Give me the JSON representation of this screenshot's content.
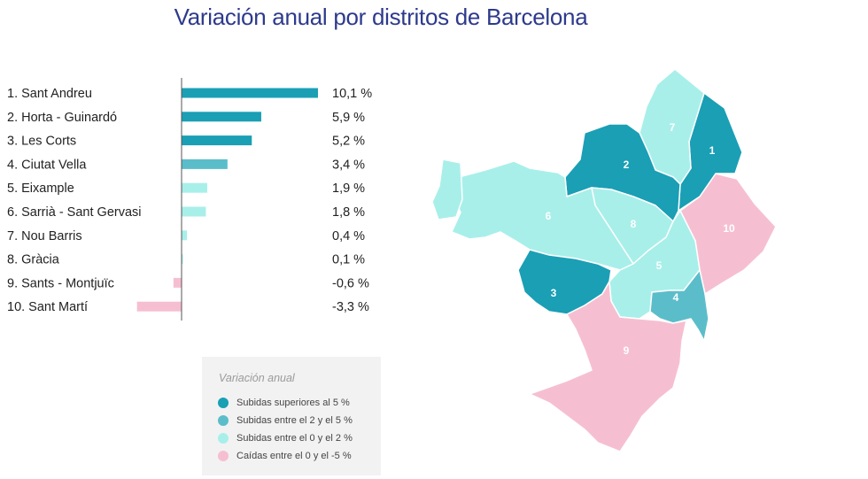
{
  "title": "Variación anual por distritos de Barcelona",
  "colors": {
    "high": "#1a9fb5",
    "mid": "#5bbdca",
    "low": "#a8efea",
    "neg": "#f6bfd1"
  },
  "chart_data": {
    "type": "bar",
    "orientation": "horizontal",
    "title": "Variación anual por distritos de Barcelona",
    "unit": "%",
    "xlim": [
      -4,
      11
    ],
    "categories": [
      "1. Sant Andreu",
      "2. Horta - Guinardó",
      "3. Les Corts",
      "4. Ciutat Vella",
      "5. Eixample",
      "6. Sarrià - Sant Gervasi",
      "7. Nou Barris",
      "8. Gràcia",
      "9. Sants - Montjuïc",
      "10. Sant Martí"
    ],
    "values": [
      10.1,
      5.9,
      5.2,
      3.4,
      1.9,
      1.8,
      0.4,
      0.1,
      -0.6,
      -3.3
    ],
    "value_labels": [
      "10,1 %",
      "5,9 %",
      "5,2 %",
      "3,4 %",
      "1,9 %",
      "1,8 %",
      "0,4 %",
      "0,1 %",
      "-0,6 %",
      "-3,3 %"
    ]
  },
  "legend": {
    "title": "Variación anual",
    "items": [
      {
        "label": "Subidas superiores al 5 %",
        "color": "#1a9fb5"
      },
      {
        "label": "Subidas entre el 2 y el 5 %",
        "color": "#5bbdca"
      },
      {
        "label": "Subidas entre el 0 y el 2 %",
        "color": "#a8efea"
      },
      {
        "label": "Caídas entre el 0 y el -5 %",
        "color": "#f6bfd1"
      }
    ]
  },
  "map": {
    "districts": [
      {
        "number": "1",
        "category": "high"
      },
      {
        "number": "2",
        "category": "high"
      },
      {
        "number": "3",
        "category": "high"
      },
      {
        "number": "4",
        "category": "mid"
      },
      {
        "number": "5",
        "category": "low"
      },
      {
        "number": "6",
        "category": "low"
      },
      {
        "number": "7",
        "category": "low"
      },
      {
        "number": "8",
        "category": "low"
      },
      {
        "number": "9",
        "category": "neg"
      },
      {
        "number": "10",
        "category": "neg"
      }
    ]
  }
}
